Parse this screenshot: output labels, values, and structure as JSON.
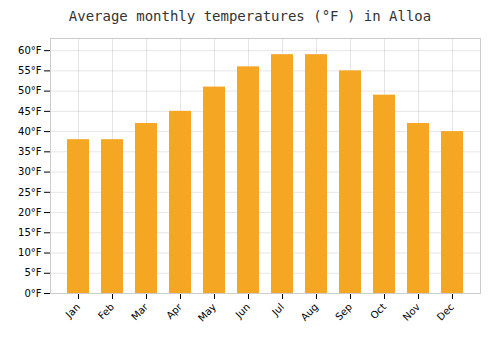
{
  "chart_data": {
    "type": "bar",
    "title": "Average monthly temperatures (°F ) in Alloa",
    "categories": [
      "Jan",
      "Feb",
      "Mar",
      "Apr",
      "May",
      "Jun",
      "Jul",
      "Aug",
      "Sep",
      "Oct",
      "Nov",
      "Dec"
    ],
    "values": [
      38,
      38,
      42,
      45,
      51,
      56,
      59,
      59,
      55,
      49,
      42,
      40
    ],
    "color": "#F5A623",
    "ylim": [
      0,
      63
    ],
    "yticks": [
      {
        "value": 0,
        "label": "0°F"
      },
      {
        "value": 5,
        "label": "5°F"
      },
      {
        "value": 10,
        "label": "10°F"
      },
      {
        "value": 15,
        "label": "15°F"
      },
      {
        "value": 20,
        "label": "20°F"
      },
      {
        "value": 25,
        "label": "25°F"
      },
      {
        "value": 30,
        "label": "30°F"
      },
      {
        "value": 35,
        "label": "35°F"
      },
      {
        "value": 40,
        "label": "40°F"
      },
      {
        "value": 45,
        "label": "45°F"
      },
      {
        "value": 50,
        "label": "50°F"
      },
      {
        "value": 55,
        "label": "55°F"
      },
      {
        "value": 60,
        "label": "60°F"
      }
    ],
    "grid": true
  }
}
